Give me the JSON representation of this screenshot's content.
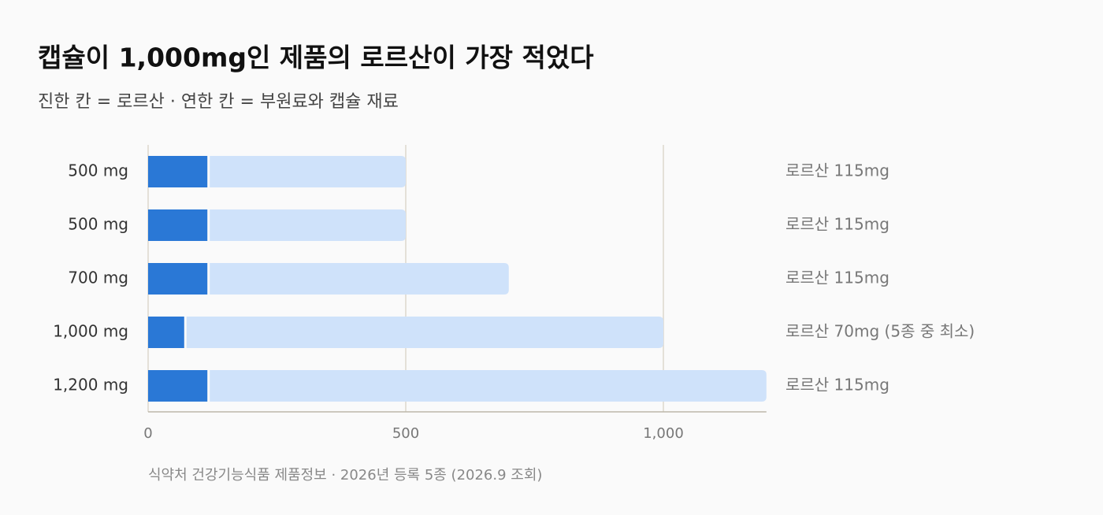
{
  "chart_data": {
    "type": "stacked-bar-horizontal",
    "title": "캡슐이 1,000mg인 제품의 로르산이 가장 적었다",
    "subtitle": "진한 칸 = 로르산 · 연한 칸 = 부원료와 캡슐 재료",
    "source": "식약처 건강기능식품 제품정보 · 2026년 등록 5종 (2026.9 조회)",
    "categories": [
      "500 mg",
      "500 mg",
      "700 mg",
      "1,000 mg",
      "1,200 mg"
    ],
    "series": [
      {
        "color": "#2a78d6",
        "values": [
          115,
          115,
          115,
          70,
          115
        ],
        "value_labels": [
          "로르산 115mg",
          "로르산 115mg",
          "로르산 115mg",
          "로르산 70mg (5종 중 최소)",
          "로르산 115mg"
        ]
      },
      {
        "color": "#cfe2fa",
        "values": [
          385,
          385,
          585,
          930,
          1085
        ]
      }
    ],
    "xlim": [
      0,
      1200
    ],
    "xticks": [
      0,
      500,
      {
        "value": 1000,
        "label": "1,000"
      }
    ],
    "grid": true
  }
}
